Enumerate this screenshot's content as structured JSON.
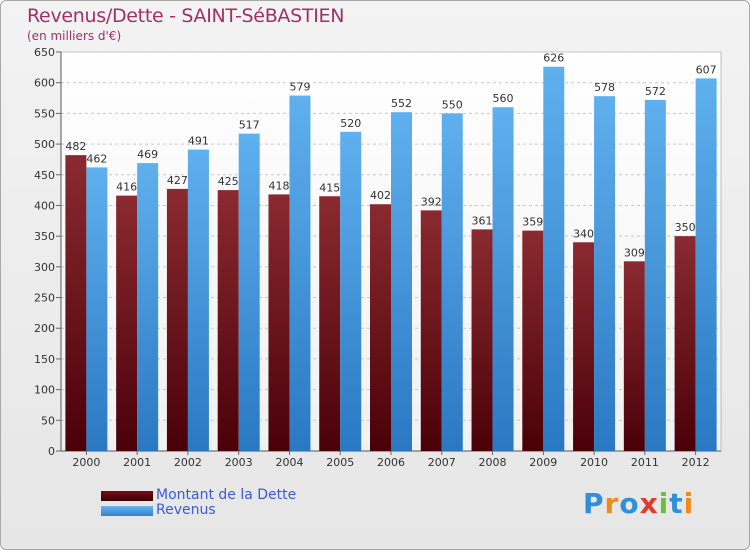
{
  "chart_data": {
    "type": "bar",
    "title": "Revenus/Dette - SAINT-SéBASTIEN",
    "subtitle": "(en milliers d'€)",
    "categories": [
      "2000",
      "2001",
      "2002",
      "2003",
      "2004",
      "2005",
      "2006",
      "2007",
      "2008",
      "2009",
      "2010",
      "2011",
      "2012"
    ],
    "series": [
      {
        "name": "Montant de la Dette",
        "color": "#7a0c14",
        "values": [
          482,
          416,
          427,
          425,
          418,
          415,
          402,
          392,
          361,
          359,
          340,
          309,
          350
        ]
      },
      {
        "name": "Revenus",
        "color": "#3a8fd8",
        "values": [
          462,
          469,
          491,
          517,
          579,
          520,
          552,
          550,
          560,
          626,
          578,
          572,
          607
        ]
      }
    ],
    "ylim": [
      0,
      650
    ],
    "yticks": [
      0,
      50,
      100,
      150,
      200,
      250,
      300,
      350,
      400,
      450,
      500,
      550,
      600,
      650
    ],
    "grid": true,
    "legend_position": "bottom-left"
  },
  "logo": {
    "text": "Proxiti",
    "letters": [
      {
        "ch": "P",
        "color": "#2f8fd8"
      },
      {
        "ch": "r",
        "color": "#f08a1c"
      },
      {
        "ch": "o",
        "color": "#2f8fd8"
      },
      {
        "ch": "x",
        "color": "#e23b2e"
      },
      {
        "ch": "i",
        "color": "#6cbf3a"
      },
      {
        "ch": "t",
        "color": "#2f8fd8"
      },
      {
        "ch": "i",
        "color": "#f08a1c"
      }
    ]
  }
}
